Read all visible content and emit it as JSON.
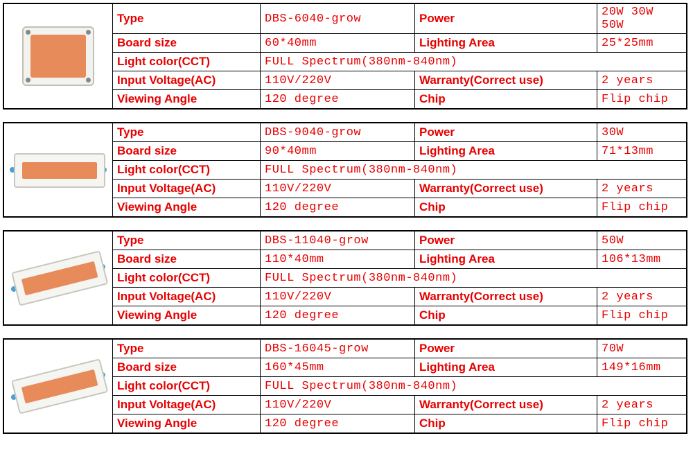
{
  "labels": {
    "type": "Type",
    "power": "Power",
    "board_size": "Board size",
    "lighting_area": "Lighting Area",
    "light_color": "Light color(CCT)",
    "input_voltage": "Input Voltage(AC)",
    "warranty": "Warranty(Correct use)",
    "viewing_angle": "Viewing Angle",
    "chip": "Chip"
  },
  "common": {
    "light_color_value": "FULL Spectrum(380nm-840nm)",
    "input_voltage_value": "110V/220V",
    "warranty_value": "2 years",
    "viewing_angle_value": "120 degree",
    "chip_value": "Flip chip"
  },
  "products": [
    {
      "type": "DBS-6040-grow",
      "power": "20W 30W 50W",
      "board_size": "60*40mm",
      "lighting_area": "25*25mm",
      "image_style": "square"
    },
    {
      "type": "DBS-9040-grow",
      "power": "30W",
      "board_size": "90*40mm",
      "lighting_area": "71*13mm",
      "image_style": "bar-short"
    },
    {
      "type": "DBS-11040-grow",
      "power": "50W",
      "board_size": "110*40mm",
      "lighting_area": "106*13mm",
      "image_style": "bar-angled"
    },
    {
      "type": "DBS-16045-grow",
      "power": "70W",
      "board_size": "160*45mm",
      "lighting_area": "149*16mm",
      "image_style": "bar-angled"
    }
  ],
  "colors": {
    "label_color": "#e60000",
    "value_color": "#e60000",
    "border_color": "#000000",
    "chip_body": "#f2f2ef",
    "chip_led": "#e88b5a"
  }
}
